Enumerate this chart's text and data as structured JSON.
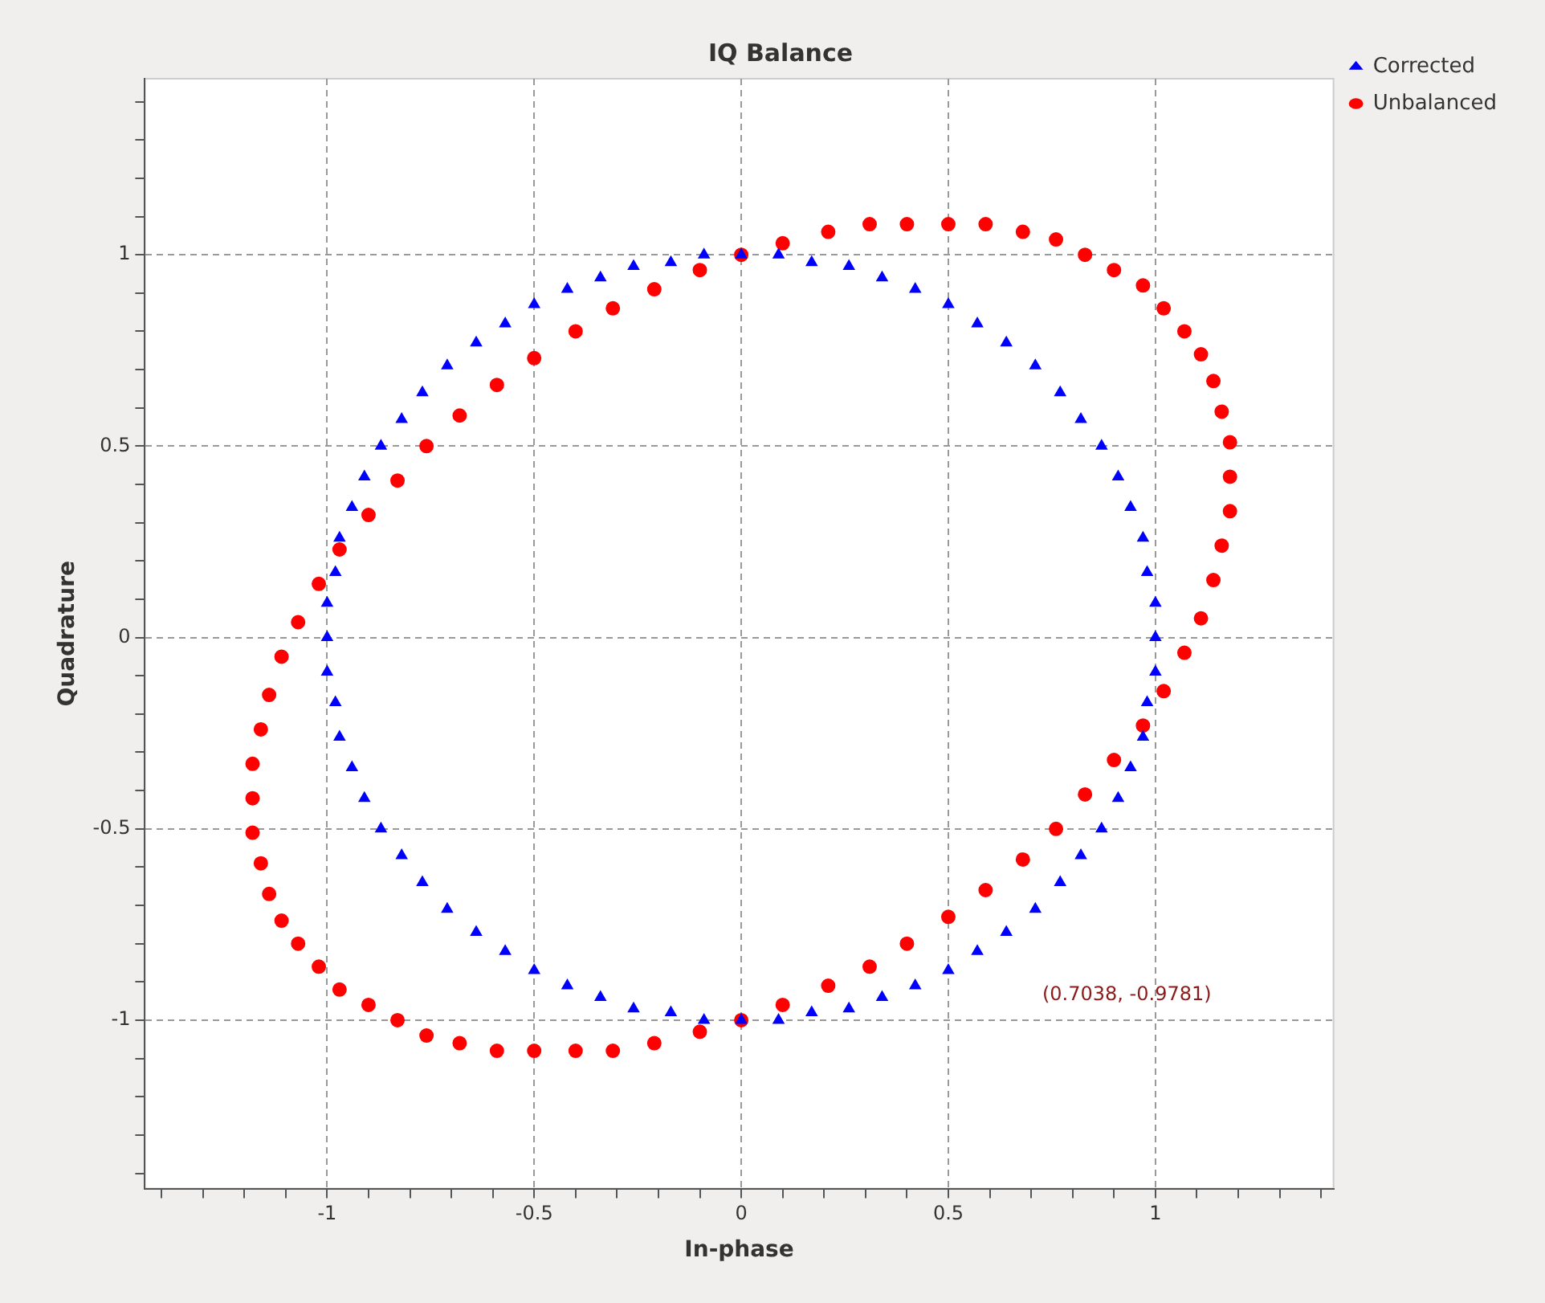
{
  "chart_data": {
    "type": "scatter",
    "title": "IQ Balance",
    "xlabel": "In-phase",
    "ylabel": "Quadrature",
    "xlim": [
      -1.44,
      1.43
    ],
    "ylim": [
      -1.44,
      1.46
    ],
    "xticks": [
      {
        "value": -1.4,
        "label": null
      },
      {
        "value": -1.3,
        "label": null
      },
      {
        "value": -1.2,
        "label": null
      },
      {
        "value": -1.1,
        "label": null
      },
      -1,
      {
        "value": -0.9,
        "label": null
      },
      {
        "value": -0.8,
        "label": null
      },
      {
        "value": -0.7,
        "label": null
      },
      {
        "value": -0.6,
        "label": null
      },
      -0.5,
      {
        "value": -0.4,
        "label": null
      },
      {
        "value": -0.3,
        "label": null
      },
      {
        "value": -0.2,
        "label": null
      },
      {
        "value": -0.1,
        "label": null
      },
      0,
      {
        "value": 0.1,
        "label": null
      },
      {
        "value": 0.2,
        "label": null
      },
      {
        "value": 0.3,
        "label": null
      },
      {
        "value": 0.4,
        "label": null
      },
      0.5,
      {
        "value": 0.6,
        "label": null
      },
      {
        "value": 0.7,
        "label": null
      },
      {
        "value": 0.8,
        "label": null
      },
      {
        "value": 0.9,
        "label": null
      },
      1,
      {
        "value": 1.1,
        "label": null
      },
      {
        "value": 1.2,
        "label": null
      },
      {
        "value": 1.3,
        "label": null
      },
      {
        "value": 1.4,
        "label": null
      }
    ],
    "yticks": [
      {
        "value": -1.4,
        "label": null
      },
      {
        "value": -1.3,
        "label": null
      },
      {
        "value": -1.2,
        "label": null
      },
      {
        "value": -1.1,
        "label": null
      },
      -1,
      {
        "value": -0.9,
        "label": null
      },
      {
        "value": -0.8,
        "label": null
      },
      {
        "value": -0.7,
        "label": null
      },
      {
        "value": -0.6,
        "label": null
      },
      -0.5,
      {
        "value": -0.4,
        "label": null
      },
      {
        "value": -0.3,
        "label": null
      },
      {
        "value": -0.2,
        "label": null
      },
      {
        "value": -0.1,
        "label": null
      },
      0,
      {
        "value": 0.1,
        "label": null
      },
      {
        "value": 0.2,
        "label": null
      },
      {
        "value": 0.3,
        "label": null
      },
      {
        "value": 0.4,
        "label": null
      },
      0.5,
      {
        "value": 0.6,
        "label": null
      },
      {
        "value": 0.7,
        "label": null
      },
      {
        "value": 0.8,
        "label": null
      },
      {
        "value": 0.9,
        "label": null
      },
      1,
      {
        "value": 1.1,
        "label": null
      },
      {
        "value": 1.2,
        "label": null
      },
      {
        "value": 1.3,
        "label": null
      },
      {
        "value": 1.4,
        "label": null
      }
    ],
    "grid": true,
    "legend": "top right",
    "annotations": [
      "(0.7038, -0.9781)"
    ],
    "series": [
      {
        "name": "Corrected",
        "color": "#0000ff",
        "marker": "triangle",
        "x": [
          1,
          1,
          0.98,
          0.97,
          0.94,
          0.91,
          0.87,
          0.82,
          0.77,
          0.71,
          0.64,
          0.57,
          0.5,
          0.42,
          0.34,
          0.26,
          0.17,
          0.09,
          0,
          -0.09,
          -0.17,
          -0.26,
          -0.34,
          -0.42,
          -0.5,
          -0.57,
          -0.64,
          -0.71,
          -0.77,
          -0.82,
          -0.87,
          -0.91,
          -0.94,
          -0.97,
          -0.98,
          -1,
          -1,
          -1,
          -0.98,
          -0.97,
          -0.94,
          -0.91,
          -0.87,
          -0.82,
          -0.77,
          -0.71,
          -0.64,
          -0.57,
          -0.5,
          -0.42,
          -0.34,
          -0.26,
          -0.17,
          -0.09,
          0,
          0.09,
          0.17,
          0.26,
          0.34,
          0.42,
          0.5,
          0.57,
          0.64,
          0.71,
          0.77,
          0.82,
          0.87,
          0.91,
          0.94,
          0.97,
          0.98,
          1
        ],
        "values": [
          0,
          0.09,
          0.17,
          0.26,
          0.34,
          0.42,
          0.5,
          0.57,
          0.64,
          0.71,
          0.77,
          0.82,
          0.87,
          0.91,
          0.94,
          0.97,
          0.98,
          1,
          1,
          1,
          0.98,
          0.97,
          0.94,
          0.91,
          0.87,
          0.82,
          0.77,
          0.71,
          0.64,
          0.57,
          0.5,
          0.42,
          0.34,
          0.26,
          0.17,
          0.09,
          0,
          -0.09,
          -0.17,
          -0.26,
          -0.34,
          -0.42,
          -0.5,
          -0.57,
          -0.64,
          -0.71,
          -0.77,
          -0.82,
          -0.87,
          -0.91,
          -0.94,
          -0.97,
          -0.98,
          -1,
          -1,
          -1,
          -0.98,
          -0.97,
          -0.94,
          -0.91,
          -0.87,
          -0.82,
          -0.77,
          -0.71,
          -0.64,
          -0.57,
          -0.5,
          -0.42,
          -0.34,
          -0.26,
          -0.17,
          -0.09
        ]
      },
      {
        "name": "Unbalanced",
        "color": "#ff0000",
        "marker": "circle",
        "x": [
          1.18,
          1.18,
          1.16,
          1.14,
          1.11,
          1.07,
          1.02,
          0.97,
          0.9,
          0.83,
          0.76,
          0.68,
          0.59,
          0.5,
          0.4,
          0.31,
          0.21,
          0.1,
          0,
          -0.1,
          -0.21,
          -0.31,
          -0.4,
          -0.5,
          -0.59,
          -0.68,
          -0.76,
          -0.83,
          -0.9,
          -0.97,
          -1.02,
          -1.07,
          -1.11,
          -1.14,
          -1.16,
          -1.18,
          -1.18,
          -1.18,
          -1.16,
          -1.14,
          -1.11,
          -1.07,
          -1.02,
          -0.97,
          -0.9,
          -0.83,
          -0.76,
          -0.68,
          -0.59,
          -0.5,
          -0.4,
          -0.31,
          -0.21,
          -0.1,
          0,
          0.1,
          0.21,
          0.31,
          0.4,
          0.5,
          0.59,
          0.68,
          0.76,
          0.83,
          0.9,
          0.97,
          1.02,
          1.07,
          1.11,
          1.14,
          1.16,
          1.18
        ],
        "values": [
          0.42,
          0.51,
          0.59,
          0.67,
          0.74,
          0.8,
          0.86,
          0.92,
          0.96,
          1,
          1.04,
          1.06,
          1.08,
          1.08,
          1.08,
          1.08,
          1.06,
          1.03,
          1,
          0.96,
          0.91,
          0.86,
          0.8,
          0.73,
          0.66,
          0.58,
          0.5,
          0.41,
          0.32,
          0.23,
          0.14,
          0.04,
          -0.05,
          -0.15,
          -0.24,
          -0.33,
          -0.42,
          -0.51,
          -0.59,
          -0.67,
          -0.74,
          -0.8,
          -0.86,
          -0.92,
          -0.96,
          -1,
          -1.04,
          -1.06,
          -1.08,
          -1.08,
          -1.08,
          -1.08,
          -1.06,
          -1.03,
          -1,
          -0.96,
          -0.91,
          -0.86,
          -0.8,
          -0.73,
          -0.66,
          -0.58,
          -0.5,
          -0.41,
          -0.32,
          -0.23,
          -0.14,
          -0.04,
          0.05,
          0.15,
          0.24,
          0.33
        ]
      }
    ]
  }
}
